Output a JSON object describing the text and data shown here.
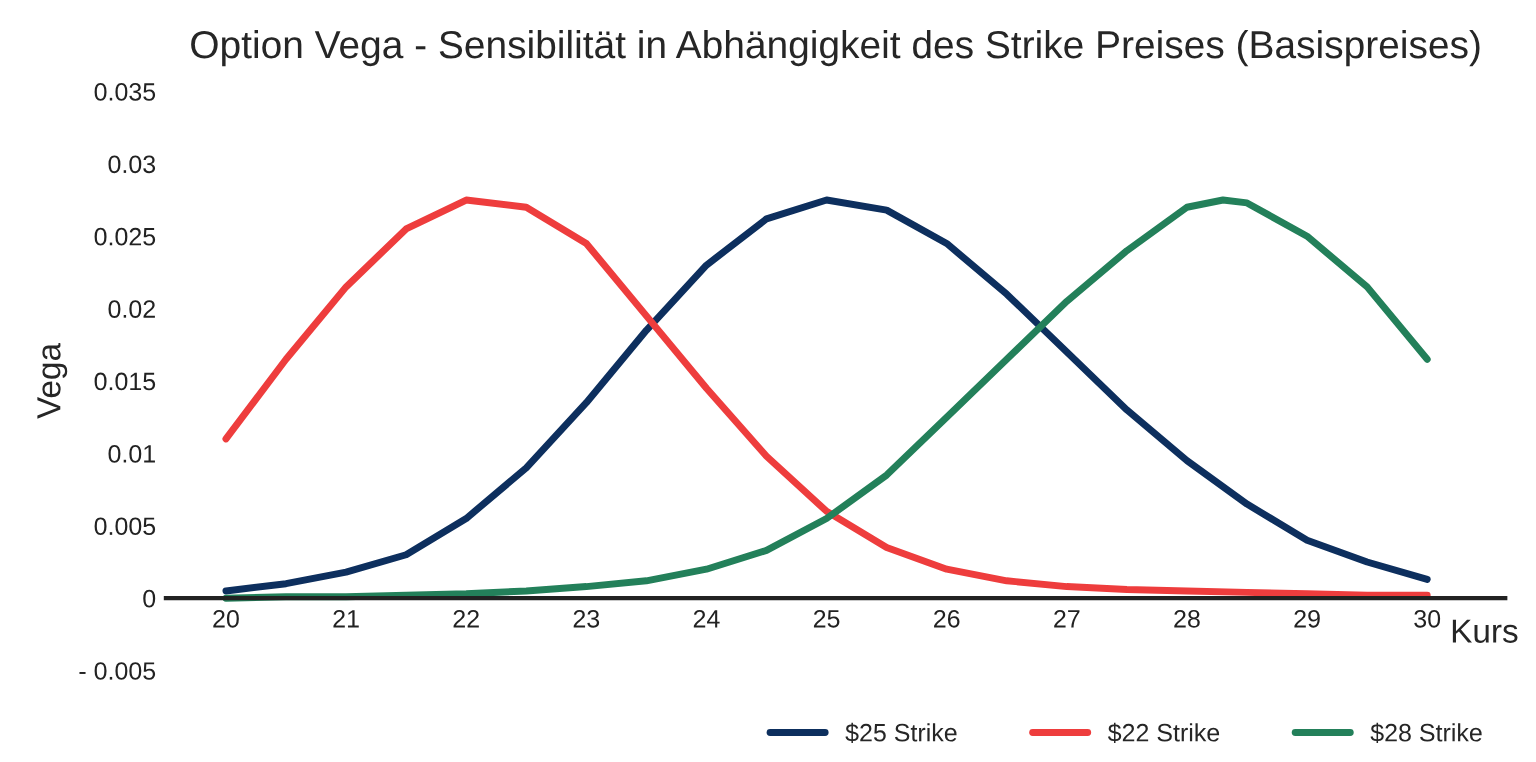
{
  "chart_data": {
    "type": "line",
    "title": "Option Vega - Sensibilität in Abhängigkeit des Strike Preises (Basispreises)",
    "xlabel": "Kurs",
    "ylabel": "Vega",
    "x": [
      20,
      20.5,
      21,
      21.5,
      22,
      22.5,
      23,
      23.5,
      24,
      24.5,
      25,
      25.5,
      26,
      26.5,
      27,
      27.5,
      28,
      28.5,
      29,
      29.5,
      30
    ],
    "series": [
      {
        "name": "$25 Strike",
        "color": "#0d2f5e",
        "values": [
          0.0005,
          0.001,
          0.0018,
          0.003,
          0.0055,
          0.009,
          0.0135,
          0.0185,
          0.023,
          0.0262,
          0.0275,
          0.0268,
          0.0245,
          0.021,
          0.017,
          0.013,
          0.0095,
          0.0065,
          0.004,
          0.0025,
          0.0013
        ]
      },
      {
        "name": "$22 Strike",
        "color": "#ee3d3d",
        "values": [
          0.011,
          0.0165,
          0.0215,
          0.0255,
          0.0275,
          0.027,
          0.0245,
          0.0195,
          0.0145,
          0.0098,
          0.006,
          0.0035,
          0.002,
          0.0012,
          0.0008,
          0.0006,
          0.0005,
          0.0004,
          0.0003,
          0.0002,
          0.0002
        ]
      },
      {
        "name": "$28 Strike",
        "color": "#23805a",
        "x": [
          20,
          20.5,
          21,
          21.5,
          22,
          22.5,
          23,
          23.5,
          24,
          24.5,
          25,
          25.5,
          26,
          26.5,
          27,
          27.5,
          28,
          28.3,
          28.5,
          29,
          29.5,
          30
        ],
        "values": [
          0,
          0.0001,
          0.0001,
          0.0002,
          0.0003,
          0.0005,
          0.0008,
          0.0012,
          0.002,
          0.0033,
          0.0055,
          0.0085,
          0.0125,
          0.0165,
          0.0205,
          0.024,
          0.027,
          0.0275,
          0.0273,
          0.025,
          0.0215,
          0.0165
        ]
      }
    ],
    "xlim": [
      19.5,
      30.65
    ],
    "xticks": [
      20,
      21,
      22,
      23,
      24,
      25,
      26,
      27,
      28,
      29,
      30
    ],
    "ylim": [
      -0.005,
      0.035
    ],
    "yticks": [
      {
        "value": -0.005,
        "label": "- 0.005"
      },
      0,
      0.005,
      0.01,
      0.015,
      0.02,
      0.025,
      0.03,
      0.035
    ],
    "grid": false,
    "legend": "bottom",
    "marker": "none",
    "line_style": "solid"
  }
}
